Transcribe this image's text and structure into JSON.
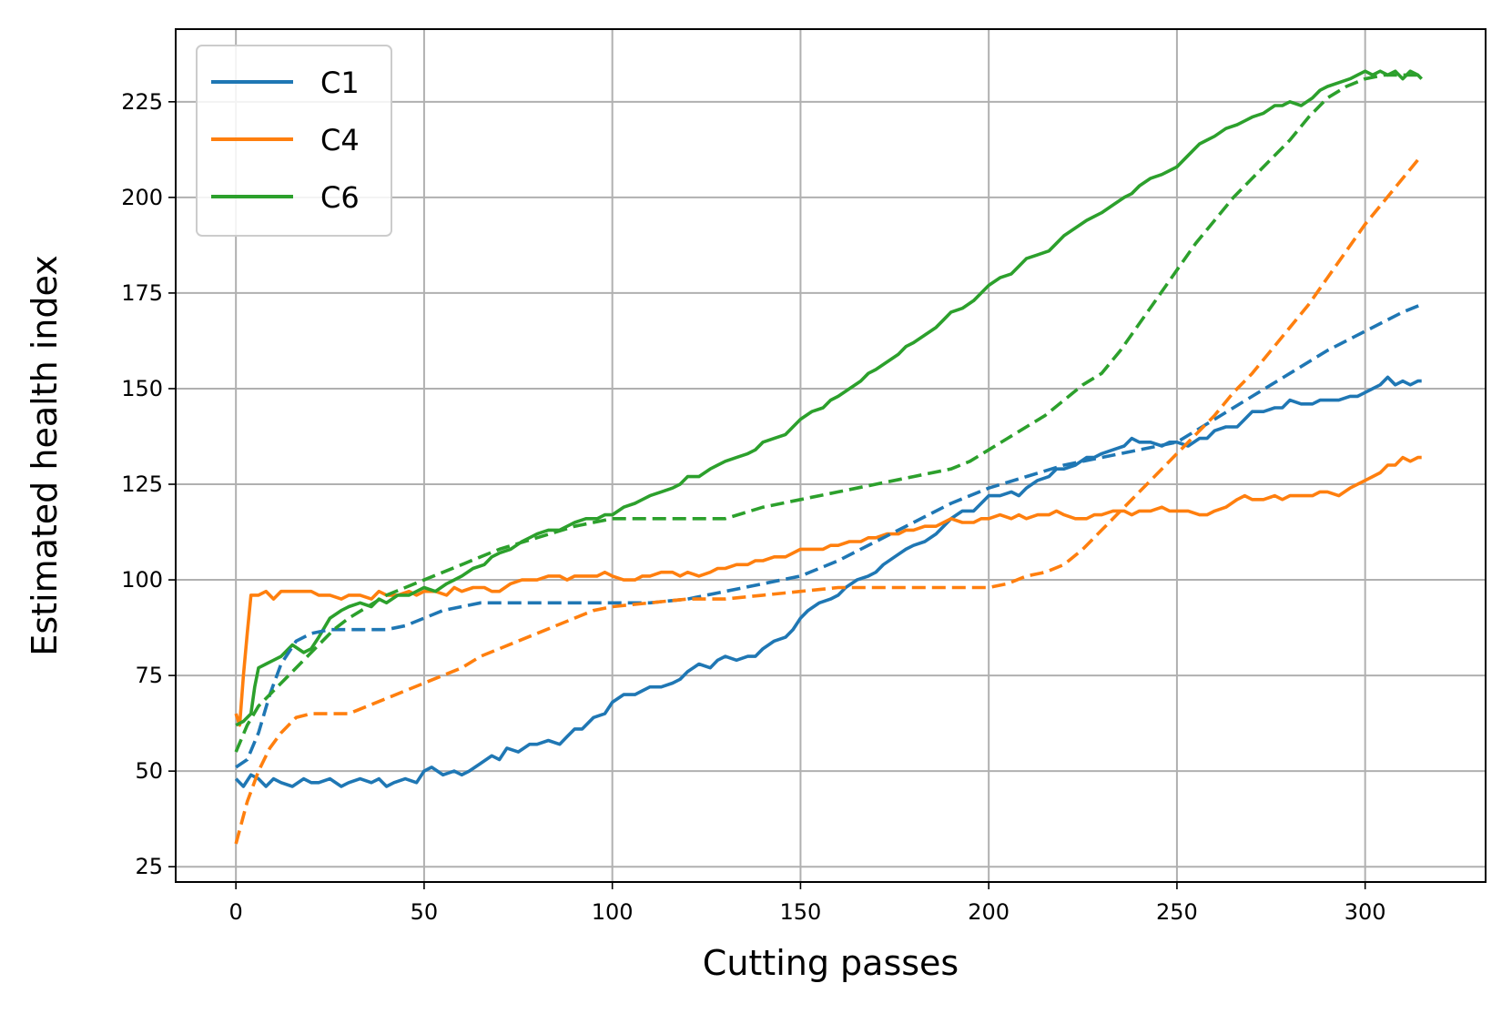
{
  "chart_data": {
    "type": "line",
    "title": "",
    "xlabel": "Cutting passes",
    "ylabel": "Estimated health index",
    "xlim": [
      -16,
      332
    ],
    "ylim": [
      21,
      244
    ],
    "xticks": [
      0,
      50,
      100,
      150,
      200,
      250,
      300
    ],
    "yticks": [
      25,
      50,
      75,
      100,
      125,
      150,
      175,
      200,
      225
    ],
    "grid": true,
    "legend": {
      "placement": "top-left",
      "entries": [
        "C1",
        "C4",
        "C6"
      ]
    },
    "series": [
      {
        "name": "C1",
        "style": "solid",
        "color": "#1f77b4",
        "x": [
          0,
          2,
          4,
          6,
          8,
          10,
          12,
          15,
          18,
          20,
          22,
          25,
          28,
          30,
          33,
          36,
          38,
          40,
          42,
          45,
          48,
          50,
          52,
          55,
          58,
          60,
          62,
          65,
          68,
          70,
          72,
          75,
          78,
          80,
          83,
          86,
          88,
          90,
          92,
          95,
          98,
          100,
          103,
          106,
          108,
          110,
          113,
          116,
          118,
          120,
          123,
          126,
          128,
          130,
          133,
          136,
          138,
          140,
          143,
          146,
          148,
          150,
          152,
          155,
          158,
          160,
          162,
          165,
          168,
          170,
          172,
          175,
          178,
          180,
          183,
          186,
          188,
          190,
          193,
          196,
          198,
          200,
          203,
          206,
          208,
          210,
          213,
          216,
          218,
          220,
          223,
          226,
          228,
          230,
          233,
          236,
          238,
          240,
          243,
          246,
          248,
          250,
          253,
          256,
          258,
          260,
          263,
          266,
          268,
          270,
          273,
          276,
          278,
          280,
          283,
          286,
          288,
          290,
          293,
          296,
          298,
          300,
          302,
          304,
          306,
          308,
          310,
          312,
          314,
          315
        ],
        "values": [
          48,
          46,
          49,
          48,
          46,
          48,
          47,
          46,
          48,
          47,
          47,
          48,
          46,
          47,
          48,
          47,
          48,
          46,
          47,
          48,
          47,
          50,
          51,
          49,
          50,
          49,
          50,
          52,
          54,
          53,
          56,
          55,
          57,
          57,
          58,
          57,
          59,
          61,
          61,
          64,
          65,
          68,
          70,
          70,
          71,
          72,
          72,
          73,
          74,
          76,
          78,
          77,
          79,
          80,
          79,
          80,
          80,
          82,
          84,
          85,
          87,
          90,
          92,
          94,
          95,
          96,
          98,
          100,
          101,
          102,
          104,
          106,
          108,
          109,
          110,
          112,
          114,
          116,
          118,
          118,
          120,
          122,
          122,
          123,
          122,
          124,
          126,
          127,
          129,
          129,
          130,
          132,
          132,
          133,
          134,
          135,
          137,
          136,
          136,
          135,
          136,
          136,
          135,
          137,
          137,
          139,
          140,
          140,
          142,
          144,
          144,
          145,
          145,
          147,
          146,
          146,
          147,
          147,
          147,
          148,
          148,
          149,
          150,
          151,
          153,
          151,
          152,
          151,
          152,
          152
        ]
      },
      {
        "name": "C4",
        "style": "solid",
        "color": "#ff7f0e",
        "x": [
          0,
          1,
          2,
          3,
          4,
          6,
          8,
          10,
          12,
          15,
          18,
          20,
          22,
          25,
          28,
          30,
          33,
          36,
          38,
          40,
          43,
          46,
          48,
          50,
          53,
          56,
          58,
          60,
          63,
          66,
          68,
          70,
          73,
          76,
          78,
          80,
          83,
          86,
          88,
          90,
          93,
          96,
          98,
          100,
          103,
          106,
          108,
          110,
          113,
          116,
          118,
          120,
          123,
          126,
          128,
          130,
          133,
          136,
          138,
          140,
          143,
          146,
          148,
          150,
          153,
          156,
          158,
          160,
          163,
          166,
          168,
          170,
          173,
          176,
          178,
          180,
          183,
          186,
          188,
          190,
          193,
          196,
          198,
          200,
          203,
          206,
          208,
          210,
          213,
          216,
          218,
          220,
          223,
          226,
          228,
          230,
          233,
          236,
          238,
          240,
          243,
          246,
          248,
          250,
          253,
          256,
          258,
          260,
          263,
          266,
          268,
          270,
          273,
          276,
          278,
          280,
          283,
          286,
          288,
          290,
          293,
          296,
          298,
          300,
          302,
          304,
          306,
          308,
          310,
          312,
          314,
          315
        ],
        "values": [
          65,
          62,
          75,
          86,
          96,
          96,
          97,
          95,
          97,
          97,
          97,
          97,
          96,
          96,
          95,
          96,
          96,
          95,
          97,
          96,
          96,
          97,
          96,
          97,
          97,
          96,
          98,
          97,
          98,
          98,
          97,
          97,
          99,
          100,
          100,
          100,
          101,
          101,
          100,
          101,
          101,
          101,
          102,
          101,
          100,
          100,
          101,
          101,
          102,
          102,
          101,
          102,
          101,
          102,
          103,
          103,
          104,
          104,
          105,
          105,
          106,
          106,
          107,
          108,
          108,
          108,
          109,
          109,
          110,
          110,
          111,
          111,
          112,
          112,
          113,
          113,
          114,
          114,
          115,
          116,
          115,
          115,
          116,
          116,
          117,
          116,
          117,
          116,
          117,
          117,
          118,
          117,
          116,
          116,
          117,
          117,
          118,
          118,
          117,
          118,
          118,
          119,
          118,
          118,
          118,
          117,
          117,
          118,
          119,
          121,
          122,
          121,
          121,
          122,
          121,
          122,
          122,
          122,
          123,
          123,
          122,
          124,
          125,
          126,
          127,
          128,
          130,
          130,
          132,
          131,
          132,
          132
        ]
      },
      {
        "name": "C6",
        "style": "solid",
        "color": "#2ca02c",
        "x": [
          0,
          2,
          4,
          5,
          6,
          8,
          10,
          12,
          15,
          18,
          20,
          22,
          25,
          28,
          30,
          33,
          36,
          38,
          40,
          43,
          46,
          48,
          50,
          53,
          56,
          58,
          60,
          63,
          66,
          68,
          70,
          73,
          76,
          78,
          80,
          83,
          86,
          88,
          90,
          93,
          96,
          98,
          100,
          103,
          106,
          108,
          110,
          113,
          116,
          118,
          120,
          123,
          126,
          128,
          130,
          133,
          136,
          138,
          140,
          143,
          146,
          148,
          150,
          153,
          156,
          158,
          160,
          163,
          166,
          168,
          170,
          173,
          176,
          178,
          180,
          183,
          186,
          188,
          190,
          193,
          196,
          198,
          200,
          203,
          206,
          208,
          210,
          213,
          216,
          218,
          220,
          223,
          226,
          228,
          230,
          233,
          236,
          238,
          240,
          243,
          246,
          248,
          250,
          253,
          256,
          258,
          260,
          263,
          266,
          268,
          270,
          273,
          276,
          278,
          280,
          283,
          286,
          288,
          290,
          293,
          296,
          298,
          300,
          302,
          304,
          306,
          308,
          310,
          312,
          314,
          315
        ],
        "values": [
          62,
          63,
          65,
          72,
          77,
          78,
          79,
          80,
          83,
          81,
          82,
          85,
          90,
          92,
          93,
          94,
          93,
          95,
          94,
          96,
          96,
          97,
          98,
          97,
          99,
          100,
          101,
          103,
          104,
          106,
          107,
          108,
          110,
          111,
          112,
          113,
          113,
          114,
          115,
          116,
          116,
          117,
          117,
          119,
          120,
          121,
          122,
          123,
          124,
          125,
          127,
          127,
          129,
          130,
          131,
          132,
          133,
          134,
          136,
          137,
          138,
          140,
          142,
          144,
          145,
          147,
          148,
          150,
          152,
          154,
          155,
          157,
          159,
          161,
          162,
          164,
          166,
          168,
          170,
          171,
          173,
          175,
          177,
          179,
          180,
          182,
          184,
          185,
          186,
          188,
          190,
          192,
          194,
          195,
          196,
          198,
          200,
          201,
          203,
          205,
          206,
          207,
          208,
          211,
          214,
          215,
          216,
          218,
          219,
          220,
          221,
          222,
          224,
          224,
          225,
          224,
          226,
          228,
          229,
          230,
          231,
          232,
          233,
          232,
          233,
          232,
          233,
          231,
          233,
          232,
          231
        ]
      },
      {
        "name": "",
        "style": "dashed",
        "color": "#1f77b4",
        "x": [
          0,
          3,
          6,
          9,
          12,
          16,
          20,
          25,
          30,
          35,
          40,
          45,
          50,
          55,
          60,
          65,
          70,
          80,
          90,
          100,
          110,
          120,
          130,
          140,
          150,
          160,
          170,
          180,
          190,
          200,
          210,
          220,
          230,
          240,
          250,
          260,
          270,
          280,
          290,
          300,
          310,
          315
        ],
        "values": [
          51,
          53,
          60,
          70,
          78,
          84,
          86,
          87,
          87,
          87,
          87,
          88,
          90,
          92,
          93,
          94,
          94,
          94,
          94,
          94,
          94,
          95,
          97,
          99,
          101,
          105,
          110,
          115,
          120,
          124,
          127,
          130,
          132,
          134,
          136,
          142,
          148,
          154,
          160,
          165,
          170,
          172
        ]
      },
      {
        "name": "",
        "style": "dashed",
        "color": "#ff7f0e",
        "x": [
          0,
          3,
          6,
          9,
          12,
          16,
          20,
          25,
          30,
          35,
          40,
          45,
          50,
          55,
          60,
          65,
          70,
          75,
          80,
          85,
          90,
          95,
          100,
          110,
          120,
          130,
          140,
          150,
          160,
          170,
          180,
          190,
          195,
          200,
          205,
          210,
          215,
          220,
          225,
          230,
          235,
          240,
          245,
          250,
          255,
          260,
          265,
          270,
          275,
          280,
          285,
          290,
          295,
          300,
          305,
          310,
          315
        ],
        "values": [
          31,
          42,
          50,
          56,
          60,
          64,
          65,
          65,
          65,
          67,
          69,
          71,
          73,
          75,
          77,
          80,
          82,
          84,
          86,
          88,
          90,
          92,
          93,
          94,
          95,
          95,
          96,
          97,
          98,
          98,
          98,
          98,
          98,
          98,
          99,
          101,
          102,
          104,
          108,
          113,
          118,
          123,
          128,
          133,
          138,
          143,
          149,
          154,
          160,
          166,
          172,
          179,
          186,
          193,
          199,
          205,
          211
        ]
      },
      {
        "name": "",
        "style": "dashed",
        "color": "#2ca02c",
        "x": [
          0,
          3,
          6,
          10,
          14,
          18,
          22,
          26,
          30,
          35,
          40,
          45,
          50,
          55,
          60,
          65,
          70,
          80,
          90,
          100,
          105,
          110,
          115,
          120,
          125,
          130,
          140,
          150,
          160,
          170,
          180,
          190,
          195,
          200,
          205,
          210,
          215,
          220,
          225,
          230,
          235,
          240,
          245,
          250,
          255,
          260,
          265,
          270,
          275,
          280,
          285,
          290,
          295,
          300,
          305,
          310,
          315
        ],
        "values": [
          55,
          62,
          67,
          71,
          75,
          79,
          83,
          87,
          90,
          93,
          96,
          98,
          100,
          102,
          104,
          106,
          108,
          111,
          114,
          116,
          116,
          116,
          116,
          116,
          116,
          116,
          119,
          121,
          123,
          125,
          127,
          129,
          131,
          134,
          137,
          140,
          143,
          147,
          151,
          154,
          160,
          167,
          174,
          181,
          188,
          194,
          200,
          205,
          210,
          215,
          221,
          226,
          229,
          231,
          232,
          232,
          232
        ]
      }
    ]
  }
}
